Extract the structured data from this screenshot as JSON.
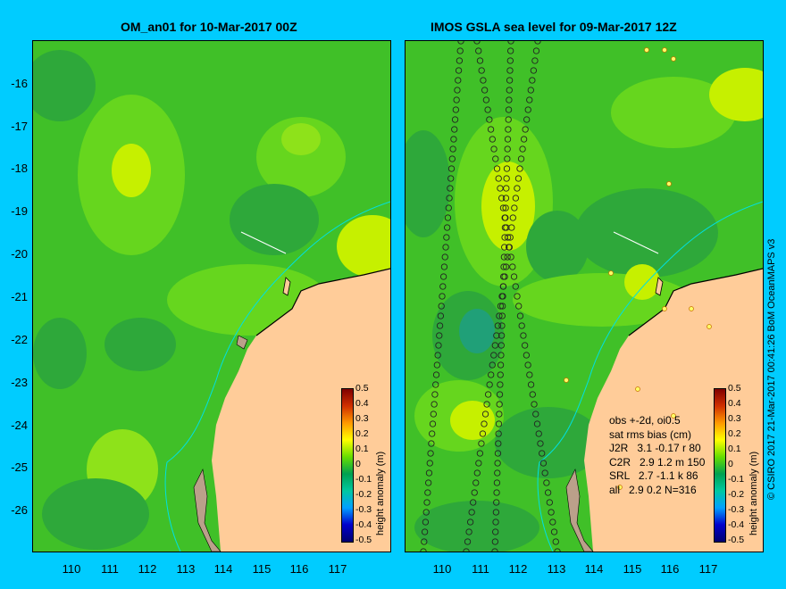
{
  "left_panel": {
    "title": "OM_an01 for 10-Mar-2017 00Z"
  },
  "right_panel": {
    "title": "IMOS GSLA sea level  for 09-Mar-2017 12Z"
  },
  "lat_ticks": [
    "-16",
    "-17",
    "-18",
    "-19",
    "-20",
    "-21",
    "-22",
    "-23",
    "-24",
    "-25",
    "-26"
  ],
  "lon_ticks": [
    "110",
    "111",
    "112",
    "113",
    "114",
    "115",
    "116",
    "117"
  ],
  "colorbar": {
    "title": "height anomaly (m)",
    "labels": [
      "0.5",
      "0.4",
      "0.3",
      "0.2",
      "0.1",
      "0",
      "-0.1",
      "-0.2",
      "-0.3",
      "-0.4",
      "-0.5"
    ]
  },
  "stats": {
    "line1": "obs +-2d, oi0.5",
    "line2": "sat rms bias (cm)",
    "line3": "J2R   3.1 -0.17 r 80",
    "line4": "C2R   2.9 1.2 m 150",
    "line5": "SRL   2.7 -1.1 k 86",
    "line6": "all   2.9 0.2 N=316"
  },
  "credit": "© CSIRO 2017   21-Mar-2017 00:41:26 BoM OceanMAPS v3",
  "colors": {
    "background": "#00ccff",
    "land": "#ffcc99",
    "ocean_base": "#44cc22"
  }
}
